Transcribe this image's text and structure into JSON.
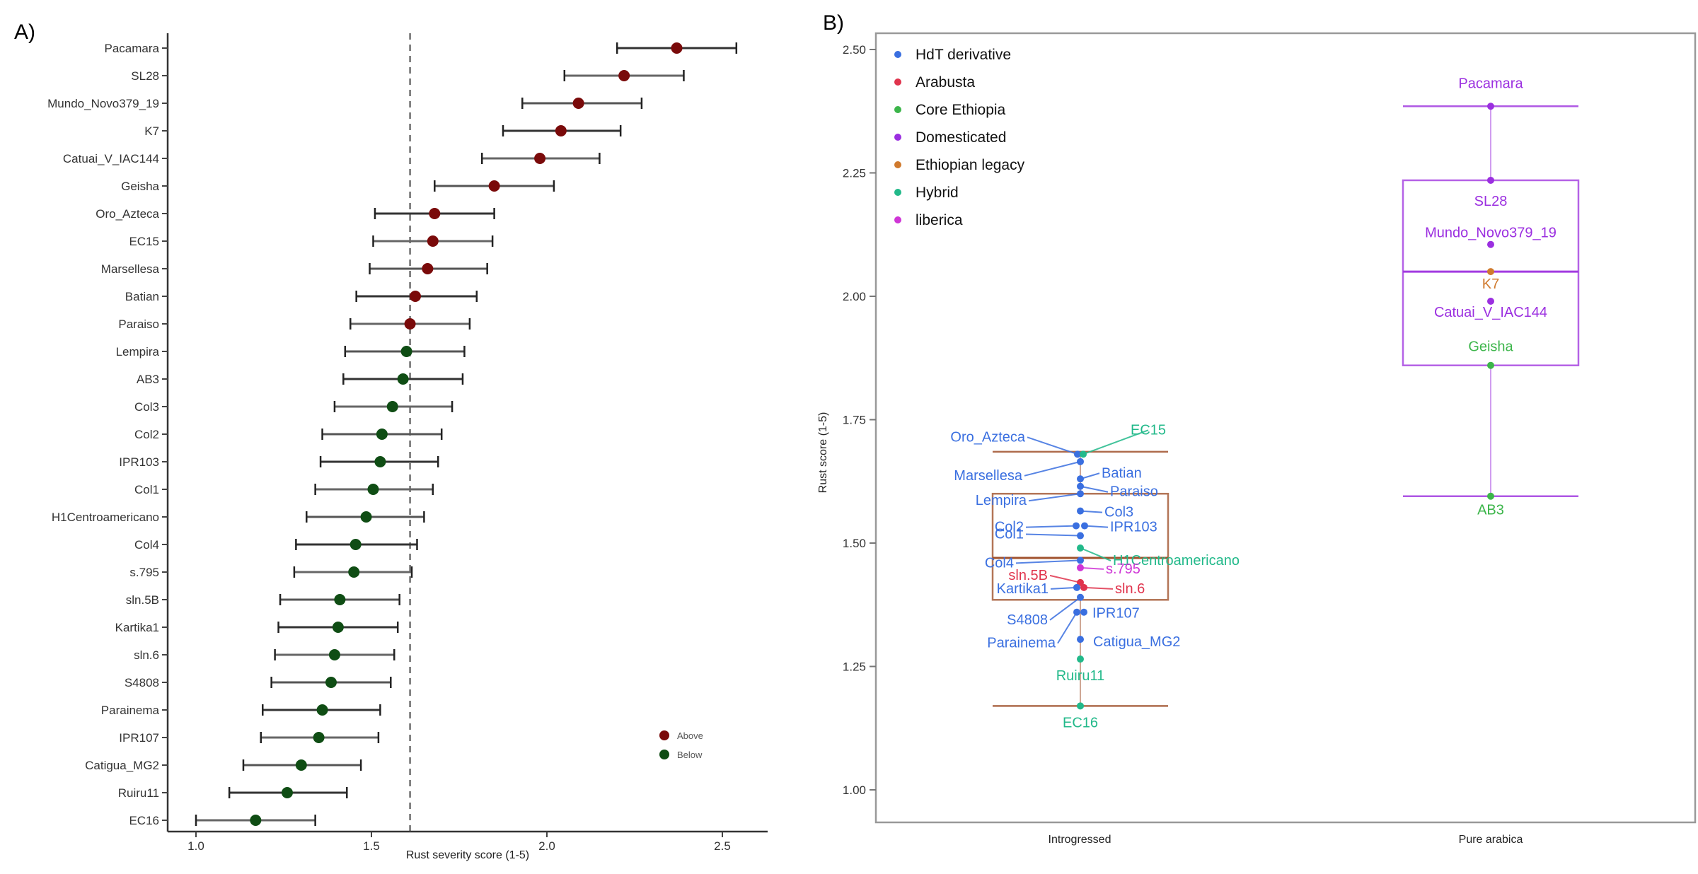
{
  "chart_data": [
    {
      "panel": "A)",
      "type": "scatter",
      "subtype": "dot-and-whisker",
      "title": "",
      "xlabel": "Rust severity score (1-5)",
      "ylabel": "",
      "xlim": [
        0.93,
        2.62
      ],
      "x_ticks": [
        "1.0",
        "1.5",
        "2.0",
        "2.5"
      ],
      "x_tick_values": [
        1.0,
        1.5,
        2.0,
        2.5
      ],
      "reference_line": {
        "value": 1.61,
        "style": "dashed"
      },
      "legend": {
        "placement": "bottom-right",
        "items": [
          {
            "label": "Above",
            "color": "#7a0a0a"
          },
          {
            "label": "Below",
            "color": "#0f4d14"
          }
        ]
      },
      "categories": [
        "Pacamara",
        "SL28",
        "Mundo_Novo379_19",
        "K7",
        "Catuai_V_IAC144",
        "Geisha",
        "Oro_Azteca",
        "EC15",
        "Marsellesa",
        "Batian",
        "Paraiso",
        "Lempira",
        "AB3",
        "Col3",
        "Col2",
        "IPR103",
        "Col1",
        "H1Centroamericano",
        "Col4",
        "s.795",
        "sln.5B",
        "Kartika1",
        "sln.6",
        "S4808",
        "Parainema",
        "IPR107",
        "Catigua_MG2",
        "Ruiru11",
        "EC16"
      ],
      "values": [
        2.37,
        2.22,
        2.09,
        2.04,
        1.98,
        1.85,
        1.68,
        1.675,
        1.66,
        1.625,
        1.61,
        1.6,
        1.59,
        1.56,
        1.53,
        1.525,
        1.505,
        1.485,
        1.455,
        1.45,
        1.41,
        1.405,
        1.395,
        1.385,
        1.36,
        1.35,
        1.3,
        1.26,
        1.17
      ],
      "lower": [
        2.2,
        2.05,
        1.93,
        1.875,
        1.815,
        1.68,
        1.51,
        1.505,
        1.495,
        1.457,
        1.44,
        1.425,
        1.42,
        1.395,
        1.36,
        1.355,
        1.34,
        1.315,
        1.285,
        1.28,
        1.24,
        1.235,
        1.225,
        1.215,
        1.19,
        1.185,
        1.135,
        1.095,
        1.0
      ],
      "upper": [
        2.54,
        2.39,
        2.27,
        2.21,
        2.15,
        2.02,
        1.85,
        1.845,
        1.83,
        1.8,
        1.78,
        1.765,
        1.76,
        1.73,
        1.7,
        1.69,
        1.675,
        1.65,
        1.63,
        1.615,
        1.58,
        1.575,
        1.565,
        1.555,
        1.525,
        1.52,
        1.47,
        1.43,
        1.34
      ],
      "group": [
        "Above",
        "Above",
        "Above",
        "Above",
        "Above",
        "Above",
        "Above",
        "Above",
        "Above",
        "Above",
        "Above",
        "Below",
        "Below",
        "Below",
        "Below",
        "Below",
        "Below",
        "Below",
        "Below",
        "Below",
        "Below",
        "Below",
        "Below",
        "Below",
        "Below",
        "Below",
        "Below",
        "Below",
        "Below"
      ]
    },
    {
      "panel": "B)",
      "type": "scatter",
      "subtype": "boxplot-with-labeled-points",
      "title": "",
      "xlabel": "",
      "ylabel": "Rust score (1-5)",
      "ylim": [
        0.93,
        2.53
      ],
      "y_ticks": [
        "1.00",
        "1.25",
        "1.50",
        "1.75",
        "2.00",
        "2.25",
        "2.50"
      ],
      "y_tick_values": [
        1.0,
        1.25,
        1.5,
        1.75,
        2.0,
        2.25,
        2.5
      ],
      "categories": [
        "Introgressed",
        "Pure arabica"
      ],
      "legend": {
        "placement": "top-left",
        "items": [
          {
            "label": "HdT derivative",
            "color": "#3a6fe0"
          },
          {
            "label": "Arabusta",
            "color": "#e0344d"
          },
          {
            "label": "Core Ethiopia",
            "color": "#3cb54a"
          },
          {
            "label": "Domesticated",
            "color": "#9b2fe0"
          },
          {
            "label": "Ethiopian legacy",
            "color": "#d07a2e"
          },
          {
            "label": "Hybrid",
            "color": "#22b98a"
          },
          {
            "label": "liberica",
            "color": "#cf36d6"
          }
        ]
      },
      "boxes": [
        {
          "category": "Introgressed",
          "min": 1.17,
          "q1": 1.385,
          "median": 1.47,
          "q3": 1.6,
          "max": 1.685,
          "color": "#a0522d"
        },
        {
          "category": "Pure arabica",
          "min": 1.595,
          "q1": 1.86,
          "median": 2.05,
          "q3": 2.235,
          "max": 2.385,
          "color": "#a23be0"
        }
      ],
      "points": [
        {
          "label": "Oro_Azteca",
          "category": "Introgressed",
          "value": 1.68,
          "group": "HdT derivative"
        },
        {
          "label": "EC15",
          "category": "Introgressed",
          "value": 1.68,
          "group": "Hybrid"
        },
        {
          "label": "Marsellesa",
          "category": "Introgressed",
          "value": 1.665,
          "group": "HdT derivative"
        },
        {
          "label": "Batian",
          "category": "Introgressed",
          "value": 1.63,
          "group": "HdT derivative"
        },
        {
          "label": "Paraiso",
          "category": "Introgressed",
          "value": 1.615,
          "group": "HdT derivative"
        },
        {
          "label": "Lempira",
          "category": "Introgressed",
          "value": 1.6,
          "group": "HdT derivative"
        },
        {
          "label": "Col3",
          "category": "Introgressed",
          "value": 1.565,
          "group": "HdT derivative"
        },
        {
          "label": "Col2",
          "category": "Introgressed",
          "value": 1.535,
          "group": "HdT derivative"
        },
        {
          "label": "IPR103",
          "category": "Introgressed",
          "value": 1.535,
          "group": "HdT derivative"
        },
        {
          "label": "Col1",
          "category": "Introgressed",
          "value": 1.515,
          "group": "HdT derivative"
        },
        {
          "label": "H1Centroamericano",
          "category": "Introgressed",
          "value": 1.49,
          "group": "Hybrid"
        },
        {
          "label": "Col4",
          "category": "Introgressed",
          "value": 1.465,
          "group": "HdT derivative"
        },
        {
          "label": "s.795",
          "category": "Introgressed",
          "value": 1.45,
          "group": "liberica"
        },
        {
          "label": "sln.5B",
          "category": "Introgressed",
          "value": 1.42,
          "group": "Arabusta"
        },
        {
          "label": "Kartika1",
          "category": "Introgressed",
          "value": 1.41,
          "group": "HdT derivative"
        },
        {
          "label": "sln.6",
          "category": "Introgressed",
          "value": 1.41,
          "group": "Arabusta"
        },
        {
          "label": "S4808",
          "category": "Introgressed",
          "value": 1.39,
          "group": "HdT derivative"
        },
        {
          "label": "IPR107",
          "category": "Introgressed",
          "value": 1.36,
          "group": "HdT derivative"
        },
        {
          "label": "Parainema",
          "category": "Introgressed",
          "value": 1.36,
          "group": "HdT derivative"
        },
        {
          "label": "Catigua_MG2",
          "category": "Introgressed",
          "value": 1.305,
          "group": "HdT derivative"
        },
        {
          "label": "Ruiru11",
          "category": "Introgressed",
          "value": 1.265,
          "group": "Hybrid"
        },
        {
          "label": "EC16",
          "category": "Introgressed",
          "value": 1.17,
          "group": "Hybrid"
        },
        {
          "label": "Pacamara",
          "category": "Pure arabica",
          "value": 2.385,
          "group": "Domesticated"
        },
        {
          "label": "SL28",
          "category": "Pure arabica",
          "value": 2.235,
          "group": "Domesticated"
        },
        {
          "label": "Mundo_Novo379_19",
          "category": "Pure arabica",
          "value": 2.105,
          "group": "Domesticated"
        },
        {
          "label": "K7",
          "category": "Pure arabica",
          "value": 2.05,
          "group": "Ethiopian legacy"
        },
        {
          "label": "Catuai_V_IAC144",
          "category": "Pure arabica",
          "value": 1.99,
          "group": "Domesticated"
        },
        {
          "label": "Geisha",
          "category": "Pure arabica",
          "value": 1.86,
          "group": "Core Ethiopia"
        },
        {
          "label": "AB3",
          "category": "Pure arabica",
          "value": 1.595,
          "group": "Core Ethiopia"
        }
      ]
    }
  ]
}
